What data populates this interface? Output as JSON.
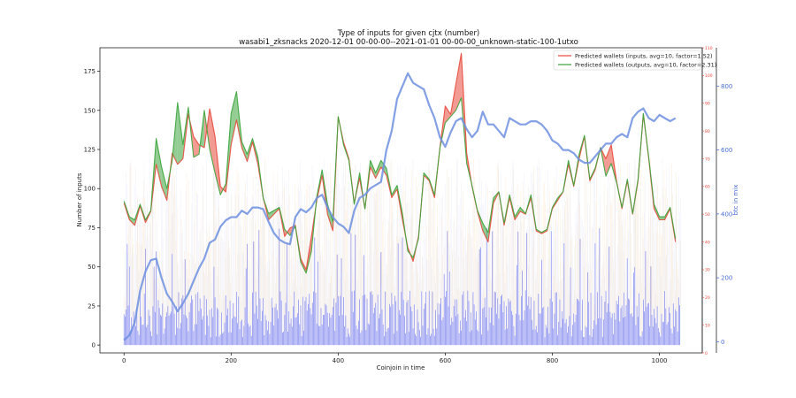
{
  "chart_data": {
    "type": "line",
    "title": "Type of inputs for given cjtx (number)",
    "subtitle": "wasabi1_zksnacks 2020-12-01 00-00-00--2021-01-01 00-00-00_unknown-static-100-1utxo",
    "xlabel": "Coinjoin in time",
    "ylabel": "Number of inputs",
    "y2label": "btc in mix",
    "xlim": [
      -45,
      1080
    ],
    "ylim": [
      -5,
      190
    ],
    "y3lim": [
      0,
      110
    ],
    "y2lim": [
      -35,
      920
    ],
    "xticks": [
      "0",
      "200",
      "400",
      "600",
      "800",
      "1000"
    ],
    "yticks": [
      "0",
      "25",
      "50",
      "75",
      "100",
      "125",
      "150",
      "175"
    ],
    "y3ticks": [
      "0",
      "10",
      "20",
      "30",
      "40",
      "50",
      "60",
      "70",
      "80",
      "90",
      "100",
      "110"
    ],
    "y2ticks": [
      "0",
      "200",
      "400",
      "600",
      "800"
    ],
    "legend_position": "top-right",
    "grid": false,
    "series": [
      {
        "name": "Predicted wallets (inputs, avg=10, factor=1.52)",
        "color": "#e8483b",
        "axis": "right-inner",
        "x": [
          0,
          10,
          20,
          30,
          40,
          50,
          60,
          70,
          80,
          90,
          100,
          110,
          120,
          130,
          140,
          150,
          160,
          170,
          180,
          190,
          200,
          210,
          220,
          230,
          240,
          250,
          260,
          270,
          280,
          290,
          300,
          310,
          320,
          330,
          340,
          350,
          360,
          370,
          380,
          390,
          400,
          410,
          420,
          430,
          440,
          450,
          460,
          470,
          480,
          490,
          500,
          510,
          520,
          530,
          540,
          550,
          560,
          570,
          580,
          590,
          600,
          610,
          620,
          630,
          640,
          650,
          660,
          670,
          680,
          690,
          700,
          710,
          720,
          730,
          740,
          750,
          760,
          770,
          780,
          790,
          800,
          810,
          820,
          830,
          840,
          850,
          860,
          870,
          880,
          890,
          900,
          910,
          920,
          930,
          940,
          950,
          960,
          970,
          980,
          990,
          1000,
          1010,
          1020,
          1030
        ],
        "values": [
          54,
          48,
          46,
          53,
          47,
          51,
          68,
          60,
          55,
          72,
          68,
          70,
          86,
          78,
          75,
          74,
          88,
          78,
          60,
          58,
          75,
          84,
          74,
          69,
          76,
          68,
          56,
          48,
          50,
          52,
          42,
          45,
          46,
          34,
          30,
          42,
          55,
          64,
          50,
          44,
          85,
          76,
          70,
          54,
          63,
          52,
          67,
          63,
          67,
          64,
          56,
          59,
          48,
          38,
          33,
          42,
          64,
          62,
          56,
          74,
          89,
          86,
          97,
          108,
          72,
          60,
          51,
          44,
          40,
          54,
          58,
          46,
          56,
          48,
          51,
          50,
          56,
          44,
          43,
          44,
          52,
          55,
          58,
          68,
          60,
          70,
          78,
          62,
          66,
          74,
          70,
          75,
          62,
          52,
          62,
          50,
          62,
          86,
          70,
          52,
          48,
          48,
          52,
          40
        ]
      },
      {
        "name": "Predicted wallets (outputs, avg=10, factor=2.31)",
        "color": "#3aa43a",
        "axis": "left",
        "x": [
          0,
          10,
          20,
          30,
          40,
          50,
          60,
          70,
          80,
          90,
          100,
          110,
          120,
          130,
          140,
          150,
          160,
          170,
          180,
          190,
          200,
          210,
          220,
          230,
          240,
          250,
          260,
          270,
          280,
          290,
          300,
          310,
          320,
          330,
          340,
          350,
          360,
          370,
          380,
          390,
          400,
          410,
          420,
          430,
          440,
          450,
          460,
          470,
          480,
          490,
          500,
          510,
          520,
          530,
          540,
          550,
          560,
          570,
          580,
          590,
          600,
          610,
          620,
          630,
          640,
          650,
          660,
          670,
          680,
          690,
          700,
          710,
          720,
          730,
          740,
          750,
          760,
          770,
          780,
          790,
          800,
          810,
          820,
          830,
          840,
          850,
          860,
          870,
          880,
          890,
          900,
          910,
          920,
          930,
          940,
          950,
          960,
          970,
          980,
          990,
          1000,
          1010,
          1020,
          1030
        ],
        "values": [
          92,
          82,
          80,
          90,
          80,
          86,
          132,
          114,
          100,
          118,
          155,
          128,
          152,
          120,
          122,
          150,
          125,
          110,
          96,
          103,
          148,
          162,
          130,
          122,
          132,
          120,
          94,
          84,
          86,
          88,
          74,
          70,
          76,
          53,
          46,
          60,
          95,
          112,
          90,
          79,
          146,
          128,
          118,
          90,
          110,
          87,
          118,
          110,
          118,
          113,
          96,
          102,
          84,
          60,
          56,
          68,
          110,
          106,
          96,
          126,
          142,
          146,
          150,
          158,
          116,
          102,
          86,
          78,
          72,
          94,
          98,
          78,
          96,
          82,
          88,
          84,
          96,
          74,
          72,
          74,
          88,
          94,
          98,
          118,
          102,
          122,
          134,
          106,
          113,
          126,
          108,
          116,
          104,
          88,
          106,
          84,
          106,
          148,
          120,
          90,
          82,
          82,
          88,
          68
        ]
      },
      {
        "name": "",
        "color": "#6d8fe0",
        "axis": "right-outer",
        "x": [
          0,
          10,
          20,
          30,
          40,
          50,
          60,
          70,
          80,
          90,
          100,
          110,
          120,
          130,
          140,
          150,
          160,
          170,
          180,
          190,
          200,
          210,
          220,
          230,
          240,
          250,
          260,
          270,
          280,
          290,
          300,
          310,
          320,
          330,
          340,
          350,
          360,
          370,
          380,
          390,
          400,
          410,
          420,
          430,
          440,
          450,
          460,
          470,
          480,
          490,
          500,
          510,
          520,
          530,
          540,
          550,
          560,
          570,
          580,
          590,
          600,
          610,
          620,
          630,
          640,
          650,
          660,
          670,
          680,
          690,
          700,
          710,
          720,
          730,
          740,
          750,
          760,
          770,
          780,
          790,
          800,
          810,
          820,
          830,
          840,
          850,
          860,
          870,
          880,
          890,
          900,
          910,
          920,
          930,
          940,
          950,
          960,
          970,
          980,
          990,
          1000,
          1010,
          1020,
          1030
        ],
        "values": [
          5,
          20,
          60,
          160,
          220,
          255,
          260,
          200,
          150,
          125,
          95,
          120,
          150,
          190,
          230,
          260,
          310,
          320,
          360,
          380,
          390,
          390,
          410,
          400,
          420,
          420,
          415,
          375,
          340,
          320,
          310,
          305,
          390,
          415,
          405,
          420,
          450,
          460,
          420,
          390,
          370,
          360,
          340,
          410,
          450,
          460,
          480,
          490,
          500,
          600,
          660,
          760,
          800,
          840,
          810,
          800,
          790,
          740,
          700,
          640,
          610,
          655,
          690,
          700,
          665,
          640,
          660,
          720,
          680,
          680,
          660,
          640,
          700,
          690,
          680,
          680,
          690,
          690,
          680,
          660,
          630,
          620,
          600,
          600,
          590,
          570,
          560,
          560,
          580,
          600,
          620,
          620,
          640,
          650,
          640,
          700,
          720,
          730,
          700,
          690,
          710,
          700,
          690,
          700
        ]
      }
    ],
    "fill_between": {
      "upper_color": "#e8483b",
      "lower_color": "#3aa43a"
    },
    "background_bars": [
      {
        "color": "#3c45e6",
        "description_units": "left"
      },
      {
        "color": "#f4c07a",
        "description_units": "left"
      }
    ]
  }
}
